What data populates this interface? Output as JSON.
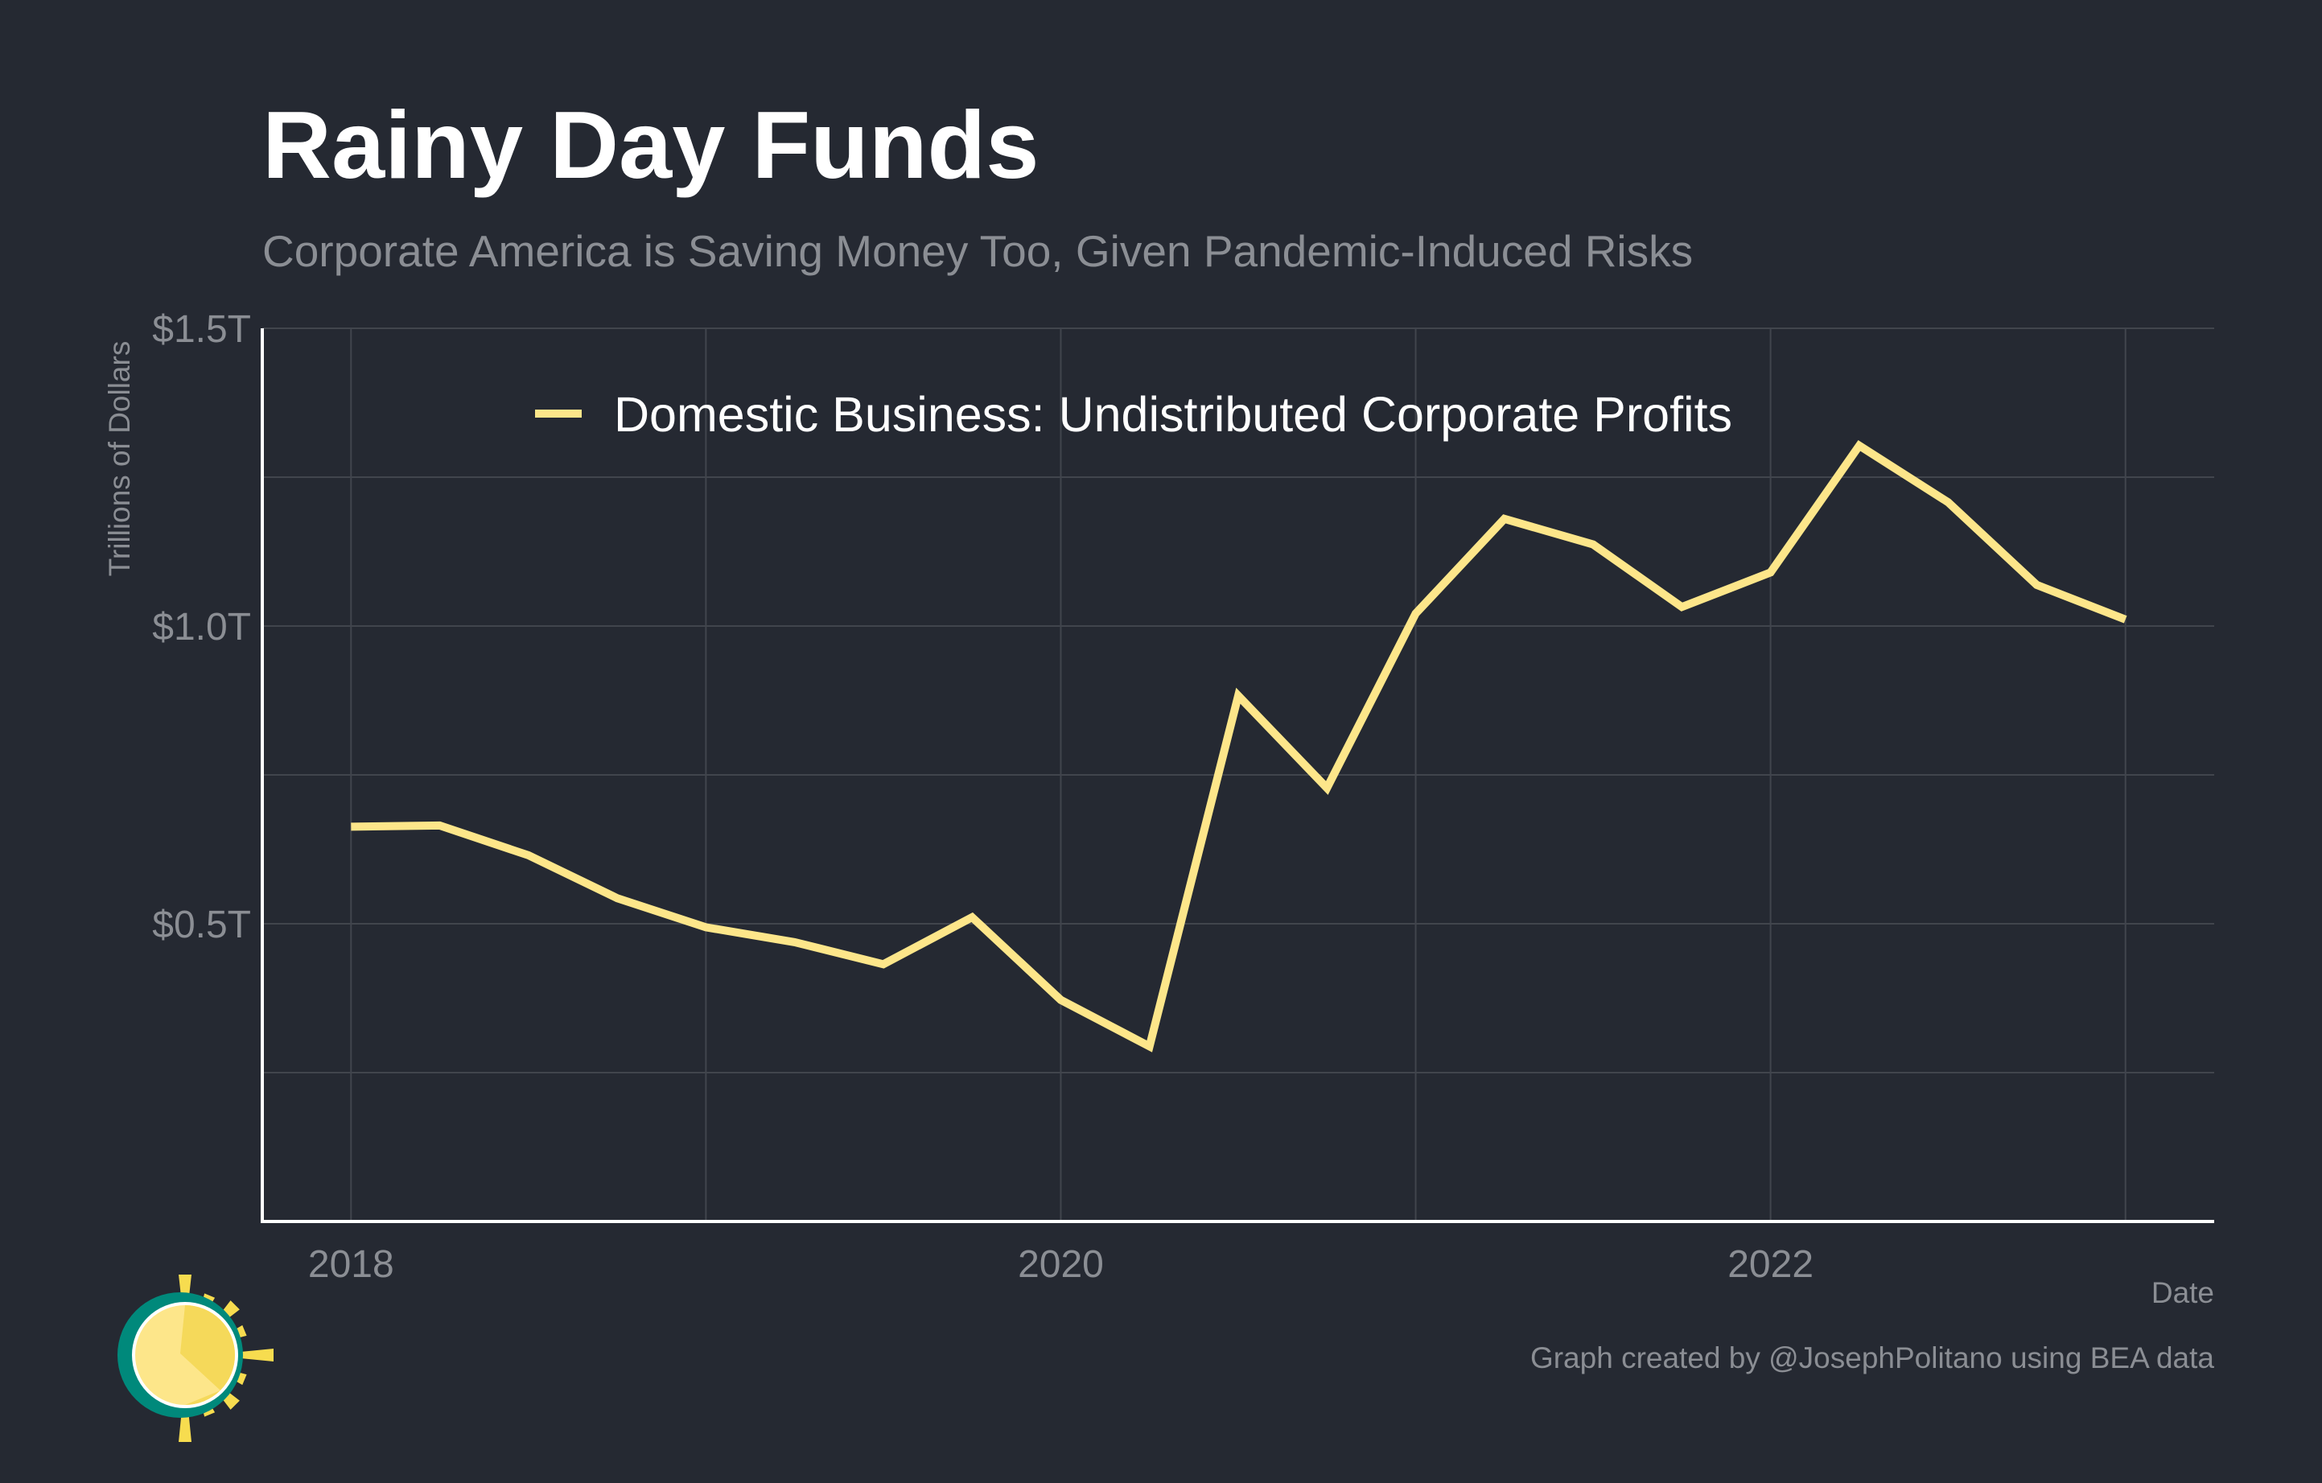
{
  "colors": {
    "background": "#252932",
    "grid": "#41454d",
    "axis": "#ffffff",
    "title": "#ffffff",
    "muted": "#8b8e94",
    "line": "#fde68a",
    "logo_teal": "#00897b",
    "logo_sun": "#fde68a",
    "logo_sun_dark": "#f5d95a",
    "logo_rays": "#f7dc4f"
  },
  "chart_data": {
    "type": "line",
    "title": "Rainy Day Funds",
    "subtitle": "Corporate America is Saving Money Too, Given Pandemic-Induced Risks",
    "ylabel": "Trillions of Dollars",
    "xlabel": "Date",
    "caption": "Graph created by @JosephPolitano using BEA data",
    "xlim": [
      2017.75,
      2023.25
    ],
    "ylim": [
      0.0,
      1.5
    ],
    "x_ticks": [
      2018,
      2020,
      2022
    ],
    "x_tick_labels": [
      "2018",
      "2020",
      "2022"
    ],
    "x_minor_gridlines": [
      2019,
      2021,
      2023
    ],
    "y_ticks": [
      0.5,
      1.0,
      1.5
    ],
    "y_tick_labels": [
      "$0.5T",
      "$1.0T",
      "$1.5T"
    ],
    "y_minor_gridlines": [
      0.25,
      0.75,
      1.25
    ],
    "grid": true,
    "legend_position": "top-left",
    "series": [
      {
        "name": "Domestic Business: Undistributed Corporate Profits",
        "x": [
          "2018 Q1",
          "2018 Q2",
          "2018 Q3",
          "2018 Q4",
          "2019 Q1",
          "2019 Q2",
          "2019 Q3",
          "2019 Q4",
          "2020 Q1",
          "2020 Q2",
          "2020 Q3",
          "2020 Q4",
          "2021 Q1",
          "2021 Q2",
          "2021 Q3",
          "2021 Q4",
          "2022 Q1",
          "2022 Q2",
          "2022 Q3",
          "2022 Q4",
          "2023 Q1"
        ],
        "values": [
          0.663,
          0.665,
          0.615,
          0.543,
          0.494,
          0.469,
          0.432,
          0.511,
          0.372,
          0.294,
          0.883,
          0.728,
          1.021,
          1.18,
          1.137,
          1.032,
          1.09,
          1.303,
          1.208,
          1.069,
          1.011
        ]
      }
    ]
  }
}
